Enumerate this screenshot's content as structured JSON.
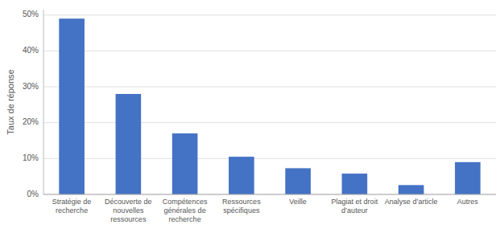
{
  "chart_data": {
    "type": "bar",
    "categories": [
      "Stratégie de\nrecherche",
      "Découverte de\nnouvelles\nressources",
      "Compétences\ngénérales de\nrecherche",
      "Ressources\nspécifiques",
      "Veille",
      "Plagiat et droit\nd’auteur",
      "Analyse d’article",
      "Autres"
    ],
    "values": [
      0.49,
      0.28,
      0.17,
      0.105,
      0.073,
      0.058,
      0.026,
      0.09
    ],
    "color": "#4472C4",
    "ylabel": "Taux de réponse",
    "ylim": [
      0,
      0.515
    ],
    "yticks": [
      {
        "value": 0.0,
        "label": "0%"
      },
      {
        "value": 0.1,
        "label": "10%"
      },
      {
        "value": 0.2,
        "label": "20%"
      },
      {
        "value": 0.3,
        "label": "30%"
      },
      {
        "value": 0.4,
        "label": "40%"
      },
      {
        "value": 0.5,
        "label": "50%"
      }
    ],
    "grid": true
  }
}
